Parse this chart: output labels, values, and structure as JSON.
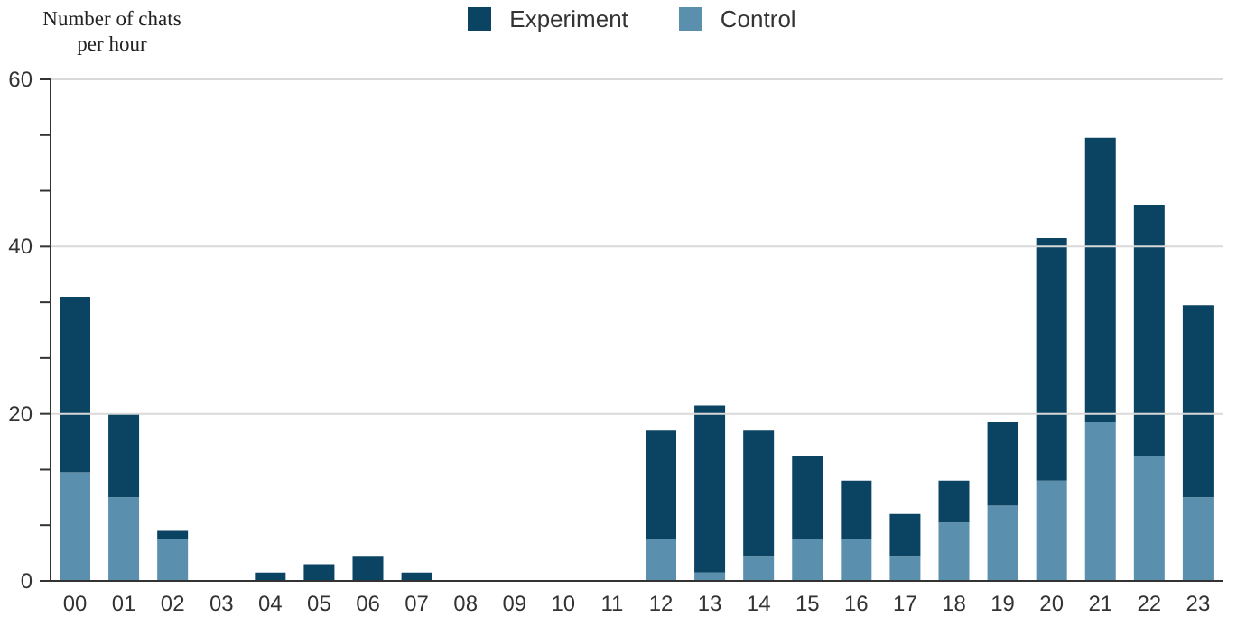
{
  "chart_data": {
    "type": "bar",
    "ylabel": "Number of chats per hour",
    "stacked": true,
    "legend": "top",
    "grid": "y",
    "categories": [
      "00",
      "01",
      "02",
      "03",
      "04",
      "05",
      "06",
      "07",
      "08",
      "09",
      "10",
      "11",
      "12",
      "13",
      "14",
      "15",
      "16",
      "17",
      "18",
      "19",
      "20",
      "21",
      "22",
      "23"
    ],
    "series": [
      {
        "name": "Control",
        "color": "#5b8fae",
        "values": [
          13,
          10,
          5,
          0,
          0,
          0,
          0,
          0,
          0,
          0,
          0,
          0,
          5,
          1,
          3,
          5,
          5,
          3,
          7,
          9,
          12,
          19,
          15,
          10
        ]
      },
      {
        "name": "Experiment",
        "color": "#0b4362",
        "values": [
          21,
          10,
          1,
          0,
          1,
          2,
          3,
          1,
          0,
          0,
          0,
          0,
          13,
          20,
          15,
          10,
          7,
          5,
          5,
          10,
          29,
          34,
          30,
          23
        ]
      }
    ],
    "ylim": [
      0,
      60
    ],
    "yticks": [
      0,
      {
        "value": 6.67,
        "label": null
      },
      {
        "value": 13.33,
        "label": null
      },
      20,
      {
        "value": 26.67,
        "label": null
      },
      {
        "value": 33.33,
        "label": null
      },
      40,
      {
        "value": 46.67,
        "label": null
      },
      {
        "value": 53.33,
        "label": null
      },
      60
    ]
  }
}
